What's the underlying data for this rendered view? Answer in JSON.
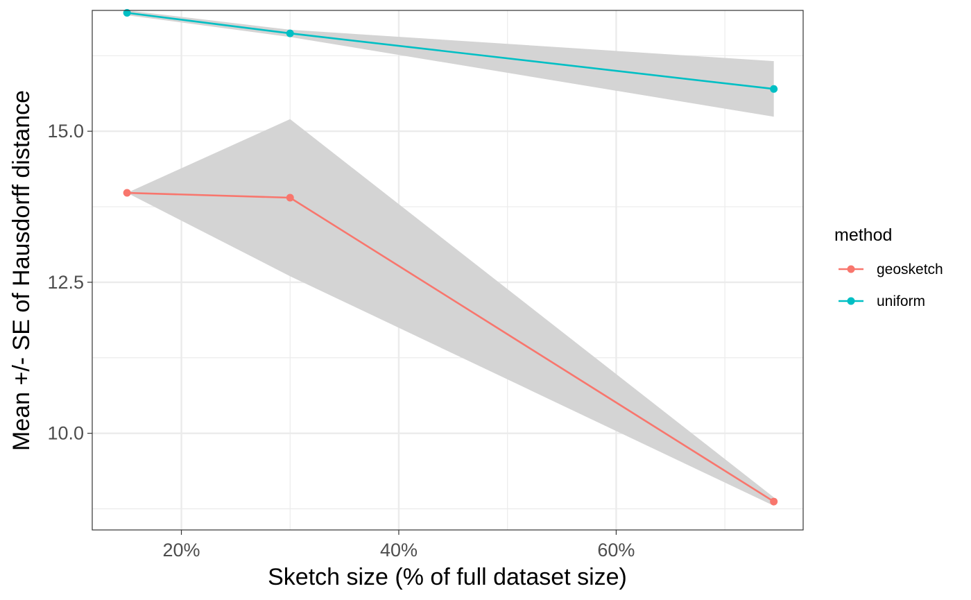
{
  "chart_data": {
    "type": "line",
    "xlabel": "Sketch size (% of full dataset size)",
    "ylabel": "Mean +/- SE of Hausdorff distance",
    "xlim": [
      11.8,
      77.2
    ],
    "ylim": [
      8.4,
      17.0
    ],
    "x_ticks": [
      20,
      40,
      60
    ],
    "x_tick_labels": [
      "20%",
      "40%",
      "60%"
    ],
    "x_minor_ticks": [
      30,
      50,
      70
    ],
    "y_ticks": [
      10.0,
      12.5,
      15.0
    ],
    "y_tick_labels": [
      "10.0",
      "12.5",
      "15.0"
    ],
    "y_minor_ticks": [
      8.75,
      11.25,
      13.75,
      16.25
    ],
    "grid": true,
    "legend": {
      "title": "method",
      "position": "right"
    },
    "series": [
      {
        "name": "geosketch",
        "color": "#F8766D",
        "x": [
          15,
          30,
          74.5
        ],
        "y": [
          13.98,
          13.9,
          8.87
        ],
        "se_lower": [
          13.98,
          12.6,
          8.8
        ],
        "se_upper": [
          13.98,
          15.2,
          8.94
        ]
      },
      {
        "name": "uniform",
        "color": "#00BFC4",
        "x": [
          15,
          30,
          74.5
        ],
        "y": [
          16.96,
          16.62,
          15.7
        ],
        "se_lower": [
          16.92,
          16.56,
          15.24
        ],
        "se_upper": [
          17.0,
          16.68,
          16.16
        ]
      }
    ],
    "ribbon_color": "#D4D4D4"
  }
}
